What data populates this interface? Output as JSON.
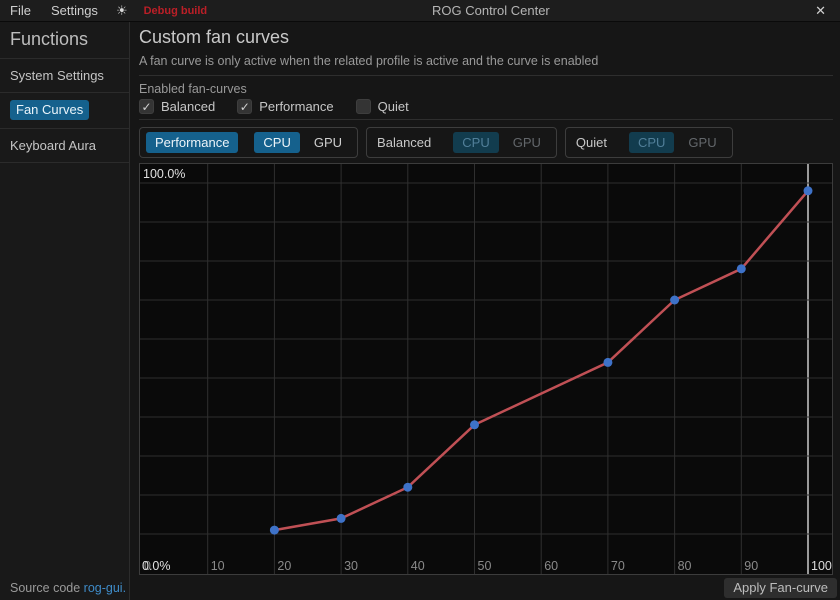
{
  "titlebar": {
    "menu": [
      {
        "label": "File"
      },
      {
        "label": "Settings"
      }
    ],
    "sun_icon": "☀",
    "debug_label": "Debug build",
    "title": "ROG Control Center",
    "close_icon": "✕"
  },
  "sidebar": {
    "header": "Functions",
    "items": [
      {
        "label": "System Settings",
        "active": false
      },
      {
        "label": "Fan Curves",
        "active": true
      },
      {
        "label": "Keyboard Aura",
        "active": false
      }
    ],
    "footer_text": "Source code",
    "footer_link": "rog-gui."
  },
  "main": {
    "title": "Custom fan curves",
    "subtitle": "A fan curve is only active when the related profile is active and the curve is enabled",
    "enabled_label": "Enabled fan-curves",
    "checkboxes": [
      {
        "label": "Balanced",
        "checked": true,
        "glyph": "✓"
      },
      {
        "label": "Performance",
        "checked": true,
        "glyph": "✓"
      },
      {
        "label": "Quiet",
        "checked": false,
        "glyph": ""
      }
    ],
    "fan_tabs": [
      {
        "profile": "Performance",
        "cpu_label": "CPU",
        "gpu_label": "GPU",
        "profile_active": true,
        "selected_fan": "CPU"
      },
      {
        "profile": "Balanced",
        "cpu_label": "CPU",
        "gpu_label": "GPU",
        "profile_active": false,
        "selected_fan": "CPU"
      },
      {
        "profile": "Quiet",
        "cpu_label": "CPU",
        "gpu_label": "GPU",
        "profile_active": false,
        "selected_fan": "CPU"
      }
    ],
    "apply_button": "Apply Fan-curve"
  },
  "chart_data": {
    "type": "line",
    "title": "",
    "xlabel": "",
    "ylabel": "",
    "xlim": [
      0,
      104
    ],
    "ylim": [
      0,
      105
    ],
    "grid": true,
    "x_ticks": [
      0,
      10,
      20,
      30,
      40,
      50,
      60,
      70,
      80,
      90,
      100
    ],
    "y_tick_step": 10,
    "y_top_label": "100.0%",
    "y_bottom_label": "0.0%",
    "highlighted_x_gridline": 100,
    "series": [
      {
        "name": "performance-cpu-fan-curve",
        "x": [
          20,
          30,
          40,
          50,
          70,
          80,
          90,
          100
        ],
        "y": [
          11,
          14,
          22,
          38,
          54,
          70,
          78,
          98
        ]
      }
    ],
    "colors": {
      "line": "#c05055",
      "point": "#3e72c8",
      "grid": "#2f2f2f",
      "grid_highlight": "#9a9a9a",
      "tick": "#8a8a8a",
      "tick_highlight": "#dcdcdc",
      "accent_blue": "#15618d",
      "debug_red": "#bb1f27"
    }
  }
}
